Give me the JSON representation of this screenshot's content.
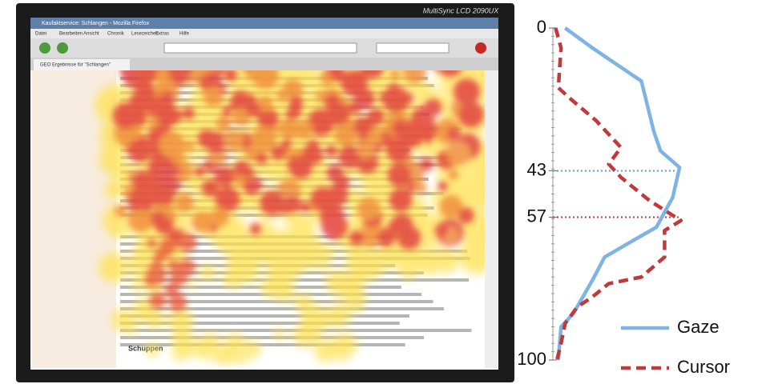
{
  "screenshot": {
    "monitor_brand": "MultiSync LCD 2090UX",
    "window_title": "Kaufaktservice: Schlangen - Mozilla Firefox",
    "menu": [
      "Datei",
      "Bearbeiten",
      "Ansicht",
      "Chronik",
      "Lesezeichen",
      "Extras",
      "Hilfe"
    ],
    "tab": "GEO Ergebnisse für \"Schlangen\"",
    "heading": "Schuppen"
  },
  "chart_data": {
    "type": "line",
    "ylim": [
      0,
      100
    ],
    "yticks": [
      0,
      43,
      57,
      100
    ],
    "y_inverted": true,
    "xlim": [
      0,
      100
    ],
    "reference_lines": [
      {
        "y": 43,
        "color": "#5b9bd5"
      },
      {
        "y": 57,
        "color": "#c0393b"
      }
    ],
    "series": [
      {
        "name": "Gaze",
        "color": "#7fb2e5",
        "dashed": false,
        "x": [
          0,
          6,
          16,
          31,
          37,
          42,
          51,
          60,
          64,
          69,
          76,
          86,
          90,
          100
        ],
        "values": [
          9,
          29,
          65,
          74,
          79,
          93,
          88,
          76,
          59,
          38,
          29,
          15,
          6,
          4
        ]
      },
      {
        "name": "Cursor",
        "color": "#c0393b",
        "dashed": true,
        "x": [
          0,
          6,
          18,
          21,
          28,
          36,
          41,
          45,
          52,
          58,
          61,
          69,
          75,
          77,
          81,
          84,
          89,
          95,
          100
        ],
        "values": [
          2,
          6,
          4,
          12,
          32,
          50,
          41,
          50,
          71,
          94,
          82,
          82,
          65,
          41,
          29,
          18,
          9,
          6,
          3
        ]
      }
    ],
    "legend": "lower-right"
  }
}
